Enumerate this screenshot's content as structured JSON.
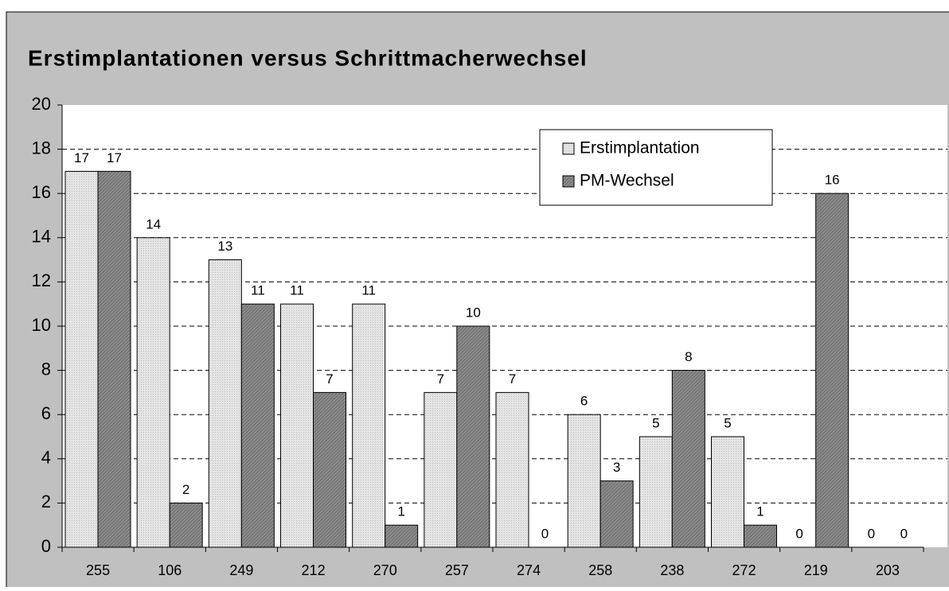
{
  "chart_data": {
    "type": "bar",
    "title": "Erstimplantationen versus Schrittmacherwechsel",
    "categories": [
      "255",
      "106",
      "249",
      "212",
      "270",
      "257",
      "274",
      "258",
      "238",
      "272",
      "219",
      "203"
    ],
    "series": [
      {
        "name": "Erstimplantation",
        "color": "#e2e2e2",
        "values": [
          17,
          14,
          13,
          11,
          11,
          7,
          7,
          6,
          5,
          5,
          0,
          0
        ]
      },
      {
        "name": "PM-Wechsel",
        "color": "#8a8a8a",
        "values": [
          17,
          2,
          11,
          7,
          1,
          10,
          0,
          3,
          8,
          1,
          16,
          0
        ]
      }
    ],
    "ylim": [
      0,
      20
    ],
    "yticks": [
      0,
      2,
      4,
      6,
      8,
      10,
      12,
      14,
      16,
      18,
      20
    ],
    "grid": true,
    "legend": "top-right"
  }
}
